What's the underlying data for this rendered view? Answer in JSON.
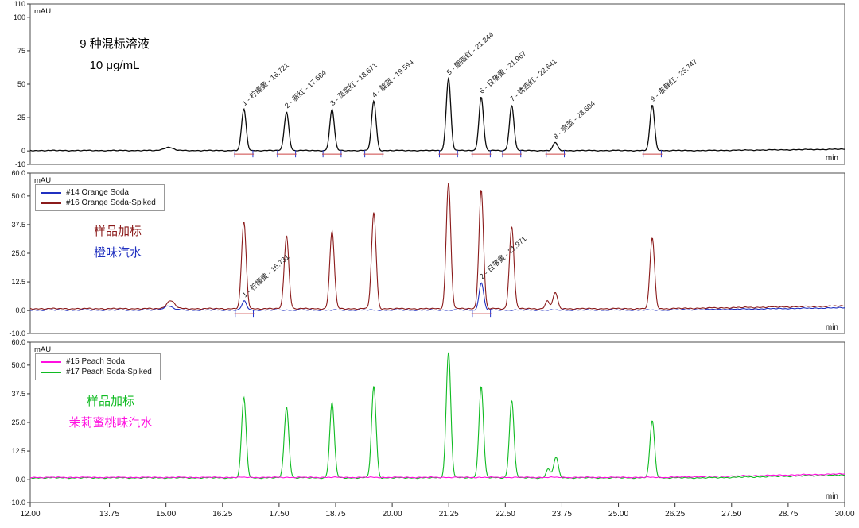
{
  "x_axis": {
    "unit": "min",
    "xlim": [
      12,
      30
    ],
    "ticks": [
      12,
      13.75,
      15,
      16.25,
      17.5,
      18.75,
      20,
      21.25,
      22.5,
      23.75,
      25,
      26.25,
      27.5,
      28.75,
      30
    ],
    "tick_labels": [
      "12.00",
      "13.75",
      "15.00",
      "16.25",
      "17.50",
      "18.75",
      "20.00",
      "21.25",
      "22.50",
      "23.75",
      "25.00",
      "26.25",
      "27.50",
      "28.75",
      "30.00"
    ]
  },
  "chart_data": [
    {
      "type": "line",
      "panel": "mixed-standard",
      "y_label": "mAU",
      "ylim": [
        -10,
        110
      ],
      "yticks": [
        110,
        100,
        75,
        50,
        25,
        0,
        -10
      ],
      "ytick_labels": [
        "110",
        "100",
        "75",
        "50",
        "25",
        "0",
        "-10"
      ],
      "annotations": [
        {
          "text": "9 种混标溶液",
          "color": "#000000"
        },
        {
          "text": "10 μg/mL",
          "color": "#000000"
        }
      ],
      "series": [
        {
          "id": "standard",
          "name": "9-dye mixed standard 10 ug/mL",
          "color": "#0b0b0b",
          "baseline": 0.3,
          "noise": 0.3,
          "integration_marks": true,
          "ramp": {
            "start": 27,
            "height": 1
          },
          "peaks": [
            {
              "num": 1,
              "analyte": "柠檬黄",
              "rt": 16.721,
              "height": 31,
              "label": "1 - 柠檬黄 - 16.721"
            },
            {
              "num": 2,
              "analyte": "新红",
              "rt": 17.664,
              "height": 29,
              "label": "2 - 新红 - 17.664"
            },
            {
              "num": 3,
              "analyte": "苋菜红",
              "rt": 18.671,
              "height": 31,
              "label": "3 - 苋菜红 - 18.671"
            },
            {
              "num": 4,
              "analyte": "靛蓝",
              "rt": 19.594,
              "height": 37,
              "label": "4 - 靛蓝 - 19.594"
            },
            {
              "num": 5,
              "analyte": "胭脂红",
              "rt": 21.244,
              "height": 54,
              "label": "5 - 胭脂红 - 21.244"
            },
            {
              "num": 6,
              "analyte": "日落黄",
              "rt": 21.967,
              "height": 40,
              "label": "6 - 日落黄 - 21.967"
            },
            {
              "num": 7,
              "analyte": "诱惑红",
              "rt": 22.641,
              "height": 34,
              "label": "7 - 诱惑红 - 22.641"
            },
            {
              "num": 8,
              "analyte": "亮蓝",
              "rt": 23.604,
              "height": 6,
              "label": "8 - 亮蓝 - 23.604"
            },
            {
              "num": 9,
              "analyte": "赤藓红",
              "rt": 25.747,
              "height": 34,
              "label": "9 - 赤藓红 - 25.747"
            }
          ],
          "bumps": [
            {
              "rt": 15.05,
              "height": 2.5,
              "sigma": 0.1
            }
          ]
        }
      ]
    },
    {
      "type": "line",
      "panel": "orange-soda",
      "y_label": "mAU",
      "ylim": [
        -10,
        60
      ],
      "yticks": [
        60,
        50,
        37.5,
        25,
        12.5,
        0,
        -10
      ],
      "ytick_labels": [
        "60.0",
        "50.0",
        "37.5",
        "25.0",
        "12.5",
        "0.0",
        "-10.0"
      ],
      "legend": [
        {
          "label": "#14 Orange Soda",
          "color": "#2030c0"
        },
        {
          "label": "#16 Orange Soda-Spiked",
          "color": "#8b1b1b"
        }
      ],
      "annotations": [
        {
          "text": "样品加标",
          "color": "#8b1b1b"
        },
        {
          "text": "橙味汽水",
          "color": "#2030c0"
        }
      ],
      "series": [
        {
          "id": "orange-soda-spiked",
          "name": "#16 Orange Soda-Spiked",
          "color": "#8b1b1b",
          "baseline": 0.8,
          "noise": 0.25,
          "ramp": {
            "start": 26,
            "height": 1.2
          },
          "peaks": [
            {
              "rt": 16.721,
              "height": 38
            },
            {
              "rt": 17.664,
              "height": 32
            },
            {
              "rt": 18.671,
              "height": 34
            },
            {
              "rt": 19.594,
              "height": 42
            },
            {
              "rt": 21.244,
              "height": 55
            },
            {
              "rt": 21.967,
              "height": 52
            },
            {
              "rt": 22.641,
              "height": 36
            },
            {
              "rt": 23.604,
              "height": 7
            },
            {
              "rt": 25.747,
              "height": 31
            }
          ],
          "bumps": [
            {
              "rt": 15.1,
              "height": 3.5,
              "sigma": 0.09
            },
            {
              "rt": 23.43,
              "height": 3.5,
              "sigma": 0.045
            }
          ]
        },
        {
          "id": "orange-soda",
          "name": "#14 Orange Soda",
          "color": "#2030c0",
          "baseline": 0.2,
          "noise": 0.2,
          "integration_marks": true,
          "ramp": {
            "start": 26,
            "height": 1
          },
          "peaks": [
            {
              "num": 1,
              "analyte": "柠檬黄",
              "rt": 16.731,
              "height": 4,
              "label": "1 - 柠檬黄 - 16.731"
            },
            {
              "num": 2,
              "analyte": "日落黄",
              "rt": 21.971,
              "height": 12,
              "label": "2 - 日落黄 - 21.971"
            }
          ],
          "bumps": [
            {
              "rt": 15.05,
              "height": 1.8,
              "sigma": 0.1
            }
          ]
        }
      ]
    },
    {
      "type": "line",
      "panel": "peach-soda",
      "y_label": "mAU",
      "ylim": [
        -10,
        60
      ],
      "yticks": [
        60,
        50,
        37.5,
        25,
        12.5,
        0,
        -10
      ],
      "ytick_labels": [
        "60.0",
        "50.0",
        "37.5",
        "25.0",
        "12.5",
        "0.0",
        "-10.0"
      ],
      "legend": [
        {
          "label": "#15 Peach Soda",
          "color": "#ff10e0"
        },
        {
          "label": "#17 Peach Soda-Spiked",
          "color": "#10bb22"
        }
      ],
      "annotations": [
        {
          "text": "样品加标",
          "color": "#10bb22"
        },
        {
          "text": "茉莉蜜桃味汽水",
          "color": "#ff10e0"
        }
      ],
      "series": [
        {
          "id": "peach-soda-spiked",
          "name": "#17 Peach Soda-Spiked",
          "color": "#10bb22",
          "baseline": 0.8,
          "noise": 0.25,
          "ramp": {
            "start": 27,
            "height": 1.2
          },
          "peaks": [
            {
              "rt": 16.721,
              "height": 35
            },
            {
              "rt": 17.664,
              "height": 31
            },
            {
              "rt": 18.671,
              "height": 33
            },
            {
              "rt": 19.594,
              "height": 40
            },
            {
              "rt": 21.244,
              "height": 55
            },
            {
              "rt": 21.967,
              "height": 40
            },
            {
              "rt": 22.641,
              "height": 34
            },
            {
              "rt": 23.62,
              "height": 9
            },
            {
              "rt": 25.747,
              "height": 25
            }
          ],
          "bumps": [
            {
              "rt": 23.45,
              "height": 4,
              "sigma": 0.045
            }
          ]
        },
        {
          "id": "peach-soda",
          "name": "#15 Peach Soda",
          "color": "#ff10e0",
          "baseline": 1.0,
          "noise": 0.2,
          "ramp": {
            "start": 26,
            "height": 1.5
          },
          "peaks": [],
          "bumps": []
        }
      ]
    }
  ]
}
